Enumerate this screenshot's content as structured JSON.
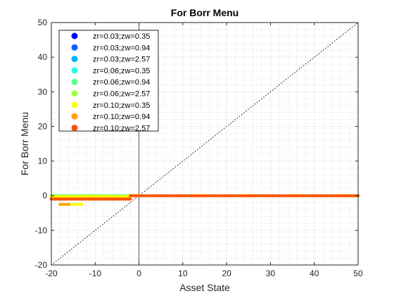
{
  "chart_data": {
    "type": "scatter",
    "title": "For Borr Menu",
    "xlabel": "Asset State",
    "ylabel": "For Borr Menu",
    "xlim": [
      -20,
      50
    ],
    "ylim": [
      -20,
      50
    ],
    "xticks": [
      -20,
      -10,
      0,
      10,
      20,
      30,
      40,
      50
    ],
    "yticks": [
      -20,
      -10,
      0,
      10,
      20,
      30,
      40,
      50
    ],
    "grid": "major and minor dotted",
    "legend_location": "top-left",
    "reference_lines": [
      "45-degree dotted line",
      "vertical line at x=0"
    ],
    "series": [
      {
        "name": "zr=0.03;zw=0.35",
        "color": "#0000ff",
        "x_from": -20,
        "x_to": 50,
        "segments": [
          {
            "x": [
              -20,
              -2
            ],
            "y": 0
          },
          {
            "x": [
              -2,
              50
            ],
            "y": 0
          }
        ]
      },
      {
        "name": "zr=0.03;zw=0.94",
        "color": "#0060ff",
        "x_from": -20,
        "x_to": 50,
        "segments": [
          {
            "x": [
              -20,
              -2
            ],
            "y": 0
          },
          {
            "x": [
              -2,
              50
            ],
            "y": 0
          }
        ]
      },
      {
        "name": "zr=0.03;zw=2.57",
        "color": "#00b0ff",
        "x_from": -20,
        "x_to": 50,
        "segments": [
          {
            "x": [
              -20,
              -2
            ],
            "y": 0
          },
          {
            "x": [
              -2,
              50
            ],
            "y": 0
          }
        ]
      },
      {
        "name": "zr=0.06;zw=0.35",
        "color": "#20ffe0",
        "x_from": -20,
        "x_to": 50,
        "segments": [
          {
            "x": [
              -20,
              -2
            ],
            "y": 0
          },
          {
            "x": [
              -2,
              50
            ],
            "y": 0
          }
        ]
      },
      {
        "name": "zr=0.06;zw=0.94",
        "color": "#60ff90",
        "x_from": -20,
        "x_to": 50,
        "segments": [
          {
            "x": [
              -20,
              -2
            ],
            "y": 0
          },
          {
            "x": [
              -2,
              50
            ],
            "y": 0
          }
        ]
      },
      {
        "name": "zr=0.06;zw=2.57",
        "color": "#a0ff40",
        "x_from": -20,
        "x_to": 50,
        "segments": [
          {
            "x": [
              -20,
              -2
            ],
            "y": 0
          },
          {
            "x": [
              -2,
              50
            ],
            "y": 0
          }
        ]
      },
      {
        "name": "zr=0.10;zw=0.35",
        "color": "#ffff00",
        "x_from": -20,
        "x_to": 50,
        "segments": [
          {
            "x": [
              -20,
              -2
            ],
            "y": -0.3
          },
          {
            "x": [
              -18,
              -13
            ],
            "y": -2.5
          },
          {
            "x": [
              -2,
              50
            ],
            "y": 0
          }
        ]
      },
      {
        "name": "zr=0.10;zw=0.94",
        "color": "#ffa000",
        "x_from": -20,
        "x_to": 50,
        "segments": [
          {
            "x": [
              -20,
              -2
            ],
            "y": -0.8
          },
          {
            "x": [
              -18,
              -16
            ],
            "y": -2.5
          },
          {
            "x": [
              -2,
              50
            ],
            "y": 0
          }
        ]
      },
      {
        "name": "zr=0.10;zw=2.57",
        "color": "#ff5000",
        "x_from": -20,
        "x_to": 50,
        "segments": [
          {
            "x": [
              -20,
              -2
            ],
            "y": -1.0
          },
          {
            "x": [
              -2,
              50
            ],
            "y": 0
          }
        ]
      }
    ]
  }
}
